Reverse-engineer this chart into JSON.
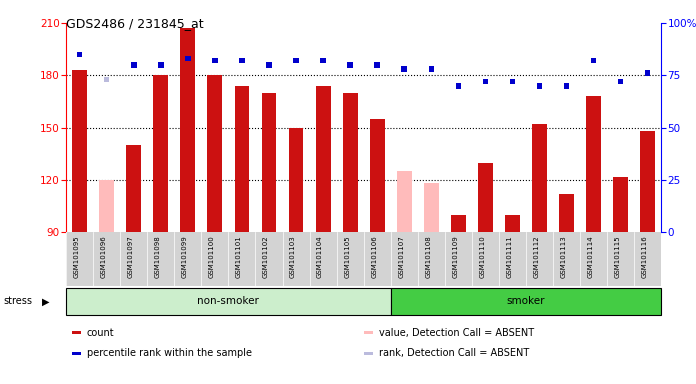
{
  "title": "GDS2486 / 231845_at",
  "samples": [
    "GSM101095",
    "GSM101096",
    "GSM101097",
    "GSM101098",
    "GSM101099",
    "GSM101100",
    "GSM101101",
    "GSM101102",
    "GSM101103",
    "GSM101104",
    "GSM101105",
    "GSM101106",
    "GSM101107",
    "GSM101108",
    "GSM101109",
    "GSM101110",
    "GSM101111",
    "GSM101112",
    "GSM101113",
    "GSM101114",
    "GSM101115",
    "GSM101116"
  ],
  "bar_values": [
    183,
    120,
    140,
    180,
    207,
    180,
    174,
    170,
    150,
    174,
    170,
    155,
    125,
    118,
    100,
    130,
    100,
    152,
    112,
    168,
    122,
    148
  ],
  "bar_absent": [
    false,
    true,
    false,
    false,
    false,
    false,
    false,
    false,
    false,
    false,
    false,
    false,
    true,
    true,
    false,
    false,
    false,
    false,
    false,
    false,
    false,
    false
  ],
  "dot_values": [
    85,
    73,
    80,
    80,
    83,
    82,
    82,
    80,
    82,
    82,
    80,
    80,
    78,
    78,
    70,
    72,
    72,
    70,
    70,
    82,
    72,
    76
  ],
  "dot_absent": [
    false,
    true,
    false,
    false,
    false,
    false,
    false,
    false,
    false,
    false,
    false,
    false,
    false,
    false,
    false,
    false,
    false,
    false,
    false,
    false,
    false,
    false
  ],
  "ylim_left": [
    90,
    210
  ],
  "ylim_right": [
    0,
    100
  ],
  "yticks_left": [
    90,
    120,
    150,
    180,
    210
  ],
  "yticks_right": [
    0,
    25,
    50,
    75,
    100
  ],
  "n_nonsmoker": 12,
  "bar_color_present": "#cc1111",
  "bar_color_absent": "#ffbbbb",
  "dot_color_present": "#0000cc",
  "dot_color_absent": "#bbbbdd",
  "group1_color": "#cceecc",
  "group2_color": "#44cc44",
  "plot_bg": "#ffffff",
  "xlab_bg": "#d3d3d3",
  "bar_width": 0.55
}
